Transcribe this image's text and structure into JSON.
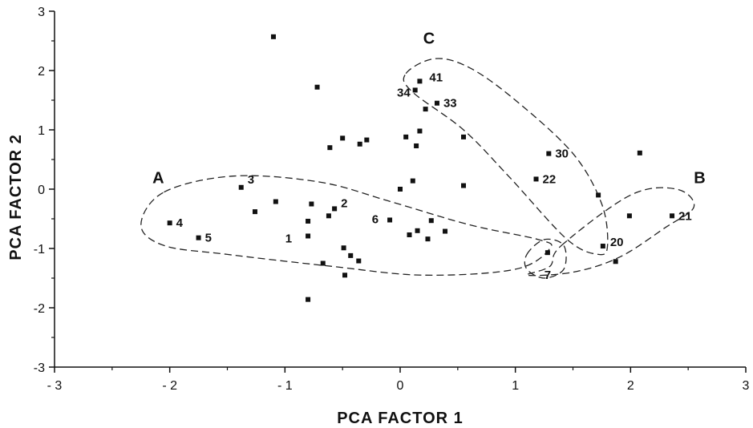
{
  "chart_data": {
    "type": "scatter",
    "title": "",
    "xlabel": "PCA FACTOR 1",
    "ylabel": "PCA FACTOR 2",
    "xlim": [
      -3,
      3
    ],
    "ylim": [
      -3,
      3
    ],
    "xticks": [
      "- 3",
      "- 2",
      "- 1",
      "0",
      "1",
      "2",
      "3"
    ],
    "yticks": [
      "3",
      "2",
      "1",
      "0",
      "-1",
      "-2",
      "-3"
    ],
    "grid": false,
    "points": [
      {
        "x": -1.1,
        "y": 2.57,
        "label": ""
      },
      {
        "x": -0.72,
        "y": 1.72,
        "label": ""
      },
      {
        "x": 0.17,
        "y": 1.82,
        "label": "41"
      },
      {
        "x": 0.13,
        "y": 1.67,
        "label": "34"
      },
      {
        "x": 0.32,
        "y": 1.45,
        "label": "33"
      },
      {
        "x": 0.22,
        "y": 1.35,
        "label": ""
      },
      {
        "x": 0.17,
        "y": 0.98,
        "label": ""
      },
      {
        "x": 0.05,
        "y": 0.88,
        "label": ""
      },
      {
        "x": 0.14,
        "y": 0.73,
        "label": ""
      },
      {
        "x": 0.55,
        "y": 0.88,
        "label": ""
      },
      {
        "x": -0.61,
        "y": 0.7,
        "label": ""
      },
      {
        "x": -0.5,
        "y": 0.86,
        "label": ""
      },
      {
        "x": -0.35,
        "y": 0.76,
        "label": ""
      },
      {
        "x": -0.29,
        "y": 0.83,
        "label": ""
      },
      {
        "x": 1.29,
        "y": 0.6,
        "label": "30"
      },
      {
        "x": 2.08,
        "y": 0.61,
        "label": ""
      },
      {
        "x": 1.18,
        "y": 0.17,
        "label": "22"
      },
      {
        "x": 0.55,
        "y": 0.06,
        "label": ""
      },
      {
        "x": 0.11,
        "y": 0.14,
        "label": ""
      },
      {
        "x": 0.0,
        "y": 0.0,
        "label": ""
      },
      {
        "x": -1.38,
        "y": 0.03,
        "label": "3"
      },
      {
        "x": -1.08,
        "y": -0.21,
        "label": ""
      },
      {
        "x": -0.77,
        "y": -0.25,
        "label": ""
      },
      {
        "x": -0.57,
        "y": -0.33,
        "label": "2"
      },
      {
        "x": -0.62,
        "y": -0.45,
        "label": ""
      },
      {
        "x": -1.26,
        "y": -0.38,
        "label": ""
      },
      {
        "x": -0.8,
        "y": -0.54,
        "label": ""
      },
      {
        "x": -2.0,
        "y": -0.57,
        "label": "4"
      },
      {
        "x": -1.75,
        "y": -0.82,
        "label": "5"
      },
      {
        "x": -0.8,
        "y": -0.79,
        "label": "1"
      },
      {
        "x": -0.09,
        "y": -0.52,
        "label": "6"
      },
      {
        "x": 0.27,
        "y": -0.53,
        "label": ""
      },
      {
        "x": 0.39,
        "y": -0.71,
        "label": ""
      },
      {
        "x": 0.15,
        "y": -0.7,
        "label": ""
      },
      {
        "x": 0.08,
        "y": -0.77,
        "label": ""
      },
      {
        "x": 0.24,
        "y": -0.84,
        "label": ""
      },
      {
        "x": -0.49,
        "y": -0.99,
        "label": ""
      },
      {
        "x": -0.43,
        "y": -1.12,
        "label": ""
      },
      {
        "x": -0.36,
        "y": -1.21,
        "label": ""
      },
      {
        "x": -0.67,
        "y": -1.25,
        "label": ""
      },
      {
        "x": -0.48,
        "y": -1.45,
        "label": ""
      },
      {
        "x": -0.8,
        "y": -1.86,
        "label": ""
      },
      {
        "x": 1.72,
        "y": -0.1,
        "label": ""
      },
      {
        "x": 1.99,
        "y": -0.45,
        "label": ""
      },
      {
        "x": 2.36,
        "y": -0.45,
        "label": "21"
      },
      {
        "x": 1.76,
        "y": -0.96,
        "label": "20"
      },
      {
        "x": 1.87,
        "y": -1.22,
        "label": ""
      },
      {
        "x": 1.28,
        "y": -1.07,
        "label": "7"
      }
    ],
    "groups": [
      {
        "label": "A",
        "label_at": [
          -2.1,
          0.1
        ],
        "path": [
          [
            -2.05,
            -0.05
          ],
          [
            -1.45,
            0.22
          ],
          [
            -0.7,
            0.12
          ],
          [
            -0.1,
            -0.2
          ],
          [
            0.6,
            -0.6
          ],
          [
            1.2,
            -0.85
          ],
          [
            1.3,
            -1.0
          ],
          [
            1.0,
            -1.35
          ],
          [
            0.2,
            -1.45
          ],
          [
            -0.6,
            -1.3
          ],
          [
            -1.5,
            -1.1
          ],
          [
            -2.05,
            -0.95
          ],
          [
            -2.25,
            -0.6
          ]
        ]
      },
      {
        "label": "B",
        "label_at": [
          2.6,
          0.1
        ],
        "path": [
          [
            1.4,
            -0.95
          ],
          [
            2.0,
            -0.1
          ],
          [
            2.4,
            0.0
          ],
          [
            2.55,
            -0.3
          ],
          [
            2.3,
            -0.65
          ],
          [
            1.9,
            -1.15
          ],
          [
            1.5,
            -1.4
          ],
          [
            1.1,
            -1.45
          ],
          [
            1.3,
            -1.3
          ]
        ]
      },
      {
        "label": "C",
        "label_at": [
          0.25,
          2.45
        ],
        "path": [
          [
            0.05,
            1.95
          ],
          [
            0.3,
            2.2
          ],
          [
            0.6,
            2.05
          ],
          [
            1.0,
            1.5
          ],
          [
            1.5,
            0.6
          ],
          [
            1.75,
            -0.25
          ],
          [
            1.8,
            -0.95
          ],
          [
            1.72,
            -1.1
          ],
          [
            1.45,
            -0.85
          ],
          [
            0.95,
            0.2
          ],
          [
            0.55,
            1.0
          ],
          [
            0.1,
            1.65
          ]
        ]
      },
      {
        "label": "",
        "label_at": [
          1.3,
          -1.25
        ],
        "path": [
          [
            1.1,
            -1.1
          ],
          [
            1.25,
            -0.85
          ],
          [
            1.42,
            -0.95
          ],
          [
            1.42,
            -1.35
          ],
          [
            1.25,
            -1.5
          ],
          [
            1.1,
            -1.35
          ]
        ]
      }
    ]
  }
}
